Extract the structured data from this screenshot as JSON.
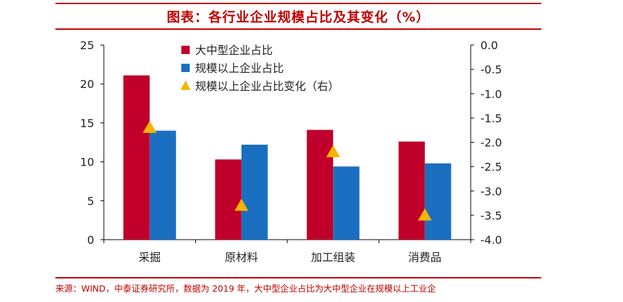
{
  "title": "图表：各行业企业规模占比及其变化（%）",
  "source": "来源：WIND，中泰证券研究所，数据为 2019 年，大中型企业占比为大中型企业在规模以上工业企",
  "colors": {
    "large_medium": "#c0002a",
    "above_scale": "#1b6fc0",
    "change": "#f5b400",
    "accent": "#c00000"
  },
  "chart_data": {
    "type": "bar",
    "categories": [
      "采掘",
      "原材料",
      "加工组装",
      "消费品"
    ],
    "series": [
      {
        "name": "大中型企业占比",
        "values": [
          21.1,
          10.3,
          14.1,
          12.6
        ],
        "axis": "left",
        "kind": "bar"
      },
      {
        "name": "规模以上企业占比",
        "values": [
          14.0,
          12.2,
          9.4,
          9.8
        ],
        "axis": "left",
        "kind": "bar"
      },
      {
        "name": "规模以上企业占比变化（右）",
        "values": [
          -1.7,
          -3.3,
          -2.2,
          -3.5
        ],
        "axis": "right",
        "kind": "marker"
      }
    ],
    "left_axis": {
      "min": 0,
      "max": 25,
      "ticks": [
        "0",
        "5",
        "10",
        "15",
        "20",
        "25"
      ]
    },
    "right_axis": {
      "min": -4.0,
      "max": 0.0,
      "ticks": [
        "0.0",
        "-0.5",
        "-1.0",
        "-1.5",
        "-2.0",
        "-2.5",
        "-3.0",
        "-3.5",
        "-4.0"
      ]
    },
    "legend_position": "top-left",
    "grid": false
  }
}
